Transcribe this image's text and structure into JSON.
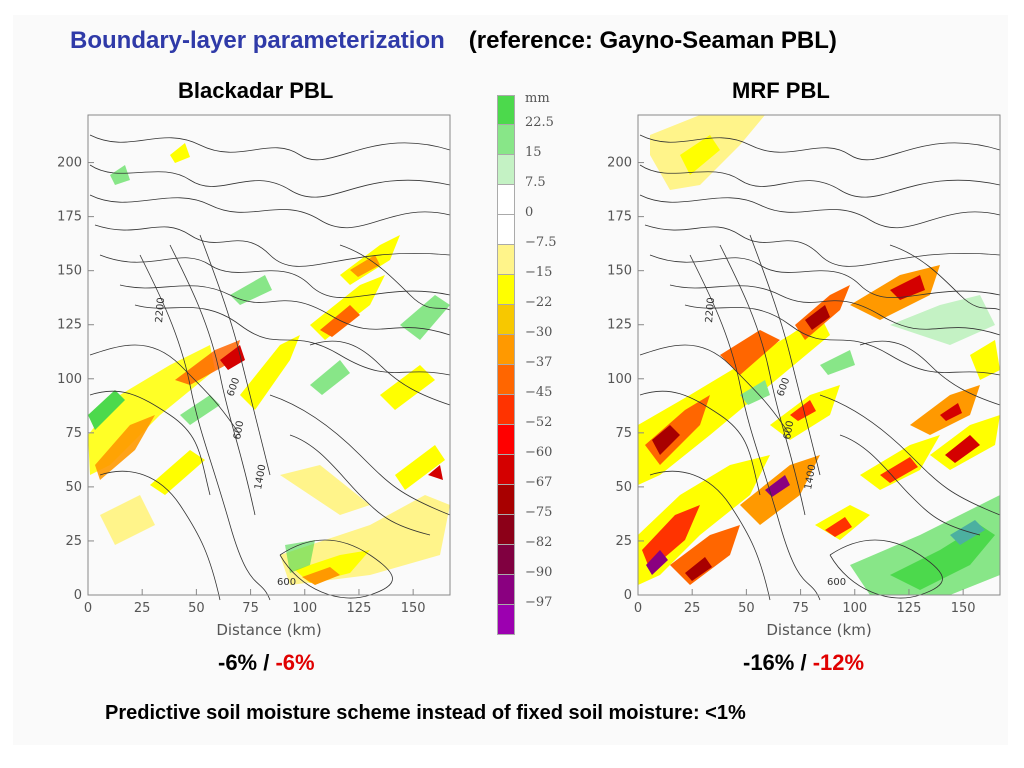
{
  "title": {
    "main": "Boundary-layer parameterization",
    "reference": "(reference: Gayno-Seaman PBL)"
  },
  "panels": [
    {
      "name": "Blackadar PBL",
      "percent_a": "-6%",
      "separator": " / ",
      "percent_b": "-6%",
      "contour_labels": [
        "2200",
        "600",
        "600",
        "1400",
        "600"
      ]
    },
    {
      "name": "MRF PBL",
      "percent_a": "-16%",
      "separator": " / ",
      "percent_b": "-12%",
      "contour_labels": [
        "2200",
        "600",
        "600",
        "1400",
        "600"
      ]
    }
  ],
  "axes": {
    "y_ticks": [
      "0",
      "25",
      "50",
      "75",
      "100",
      "125",
      "150",
      "175",
      "200"
    ],
    "x_ticks": [
      "0",
      "25",
      "50",
      "75",
      "100",
      "125",
      "150"
    ],
    "x_label": "Distance (km)"
  },
  "colorbar": {
    "unit": "mm",
    "levels": [
      {
        "label": "22.5",
        "color": "#4cd94c"
      },
      {
        "label": "15",
        "color": "#88e688"
      },
      {
        "label": "7.5",
        "color": "#c4f2c4"
      },
      {
        "label": "0",
        "color": "#ffffff"
      },
      {
        "label": "−7.5",
        "color": "#ffffff"
      },
      {
        "label": "−15",
        "color": "#fff48a"
      },
      {
        "label": "−22",
        "color": "#ffff00"
      },
      {
        "label": "−30",
        "color": "#f7c800"
      },
      {
        "label": "−37",
        "color": "#ff9900"
      },
      {
        "label": "−45",
        "color": "#ff6600"
      },
      {
        "label": "−52",
        "color": "#ff3300"
      },
      {
        "label": "−60",
        "color": "#ff0000"
      },
      {
        "label": "−67",
        "color": "#d40000"
      },
      {
        "label": "−75",
        "color": "#a80000"
      },
      {
        "label": "−82",
        "color": "#8c0018"
      },
      {
        "label": "−90",
        "color": "#800040"
      },
      {
        "label": "−97",
        "color": "#8a0080"
      },
      {
        "label": "",
        "color": "#9c00b0"
      }
    ]
  },
  "footer": "Predictive soil moisture scheme instead of fixed soil moisture: <1%"
}
